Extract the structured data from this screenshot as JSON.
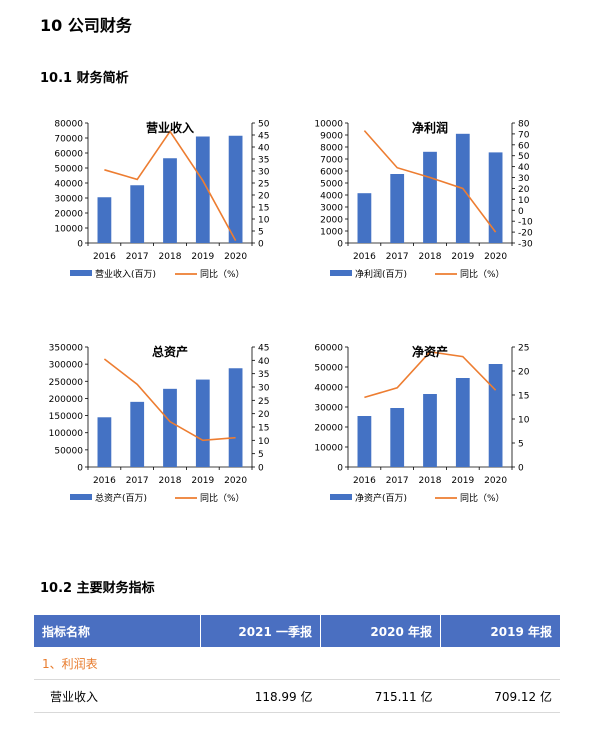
{
  "page": {
    "heading": "10 公司财务",
    "subheading1": "10.1 财务简析",
    "subheading2": "10.2 主要财务指标"
  },
  "colors": {
    "bar": "#4472c4",
    "line": "#ed7d31",
    "header_bg": "#4a6fc1",
    "section_text": "#e87b2c"
  },
  "chart_data": [
    {
      "type": "bar",
      "title": "营业收入",
      "categories": [
        "2016",
        "2017",
        "2018",
        "2019",
        "2020"
      ],
      "series": [
        {
          "name": "营业收入(百万)",
          "values": [
            30500,
            38500,
            56500,
            71000,
            71500
          ],
          "axis": "left"
        },
        {
          "name": "同比（%）",
          "type": "line",
          "values": [
            30.5,
            26.5,
            46.5,
            26,
            1
          ],
          "axis": "right"
        }
      ],
      "ylim": [
        0,
        80000
      ],
      "yticks": [
        0,
        10000,
        20000,
        30000,
        40000,
        50000,
        60000,
        70000,
        80000
      ],
      "y2lim": [
        0,
        50
      ],
      "y2ticks": [
        0,
        5,
        10,
        15,
        20,
        25,
        30,
        35,
        40,
        45,
        50
      ],
      "legend": "bottom"
    },
    {
      "type": "bar",
      "title": "净利润",
      "categories": [
        "2016",
        "2017",
        "2018",
        "2019",
        "2020"
      ],
      "series": [
        {
          "name": "净利润(百万)",
          "values": [
            4150,
            5750,
            7600,
            9100,
            7550
          ],
          "axis": "left"
        },
        {
          "name": "同比（%）",
          "type": "line",
          "values": [
            73,
            39,
            30,
            20,
            -20
          ],
          "axis": "right"
        }
      ],
      "ylim": [
        0,
        10000
      ],
      "yticks": [
        0,
        1000,
        2000,
        3000,
        4000,
        5000,
        6000,
        7000,
        8000,
        9000,
        10000
      ],
      "y2lim": [
        -30,
        80
      ],
      "y2ticks": [
        -30,
        -20,
        -10,
        0,
        10,
        20,
        30,
        40,
        50,
        60,
        70,
        80
      ],
      "legend": "bottom"
    },
    {
      "type": "bar",
      "title": "总资产",
      "categories": [
        "2016",
        "2017",
        "2018",
        "2019",
        "2020"
      ],
      "series": [
        {
          "name": "总资产(百万)",
          "values": [
            145000,
            190000,
            228000,
            255000,
            288000
          ],
          "axis": "left"
        },
        {
          "name": "同比（%）",
          "type": "line",
          "values": [
            40.5,
            31,
            17,
            10,
            11
          ],
          "axis": "right"
        }
      ],
      "ylim": [
        0,
        350000
      ],
      "yticks": [
        0,
        50000,
        100000,
        150000,
        200000,
        250000,
        300000,
        350000
      ],
      "y2lim": [
        0,
        45
      ],
      "y2ticks": [
        0,
        5,
        10,
        15,
        20,
        25,
        30,
        35,
        40,
        45
      ],
      "legend": "bottom"
    },
    {
      "type": "bar",
      "title": "净资产",
      "categories": [
        "2016",
        "2017",
        "2018",
        "2019",
        "2020"
      ],
      "series": [
        {
          "name": "净资产(百万)",
          "values": [
            25500,
            29500,
            36500,
            44500,
            51500
          ],
          "axis": "left"
        },
        {
          "name": "同比（%）",
          "type": "line",
          "values": [
            14.5,
            16.5,
            24,
            23,
            16
          ],
          "axis": "right"
        }
      ],
      "ylim": [
        0,
        60000
      ],
      "yticks": [
        0,
        10000,
        20000,
        30000,
        40000,
        50000,
        60000
      ],
      "y2lim": [
        0,
        25
      ],
      "y2ticks": [
        0,
        5,
        10,
        15,
        20,
        25
      ],
      "legend": "bottom"
    }
  ],
  "table": {
    "headers": [
      "指标名称",
      "2021 一季报",
      "2020 年报",
      "2019 年报"
    ],
    "section_label": "1、利润表",
    "rows": [
      {
        "name": "营业收入",
        "values": [
          "118.99 亿",
          "715.11 亿",
          "709.12 亿"
        ]
      }
    ]
  }
}
